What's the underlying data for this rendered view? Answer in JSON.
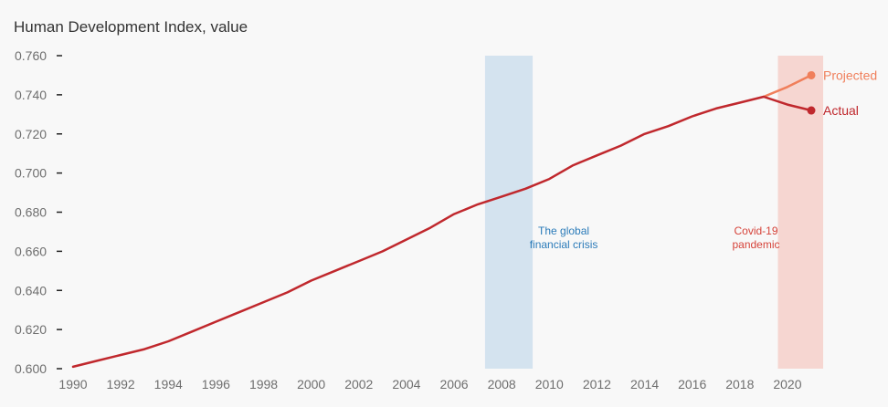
{
  "chart_data": {
    "type": "line",
    "title": "",
    "ylabel": "Human Development Index, value",
    "xlabel": "",
    "ylim": [
      0.6,
      0.76
    ],
    "xlim": [
      1990,
      2021
    ],
    "y_ticks": [
      "0.600",
      "0.620",
      "0.640",
      "0.660",
      "0.680",
      "0.700",
      "0.720",
      "0.740",
      "0.760"
    ],
    "x_ticks": [
      "1990",
      "1992",
      "1994",
      "1996",
      "1998",
      "2000",
      "2002",
      "2004",
      "2006",
      "2008",
      "2010",
      "2012",
      "2014",
      "2016",
      "2018",
      "2020"
    ],
    "grid": false,
    "colors": {
      "actual": "#c0282d",
      "projected": "#f07f5b",
      "crisis_band": "#d4e3ef",
      "crisis_text": "#2b7bb9",
      "pandemic_band": "#f6d6d1",
      "pandemic_text": "#d6433a"
    },
    "series": [
      {
        "name": "Actual",
        "x": [
          1990,
          1991,
          1992,
          1993,
          1994,
          1995,
          1996,
          1997,
          1998,
          1999,
          2000,
          2001,
          2002,
          2003,
          2004,
          2005,
          2006,
          2007,
          2008,
          2009,
          2010,
          2011,
          2012,
          2013,
          2014,
          2015,
          2016,
          2017,
          2018,
          2019,
          2020,
          2021
        ],
        "values": [
          0.601,
          0.604,
          0.607,
          0.61,
          0.614,
          0.619,
          0.624,
          0.629,
          0.634,
          0.639,
          0.645,
          0.65,
          0.655,
          0.66,
          0.666,
          0.672,
          0.679,
          0.684,
          0.688,
          0.692,
          0.697,
          0.704,
          0.709,
          0.714,
          0.72,
          0.724,
          0.729,
          0.733,
          0.736,
          0.739,
          0.735,
          0.732
        ]
      },
      {
        "name": "Projected",
        "x": [
          2019,
          2020,
          2021
        ],
        "values": [
          0.739,
          0.744,
          0.75
        ]
      }
    ],
    "bands": [
      {
        "x0": 2007.3,
        "x1": 2009.3,
        "label_lines": [
          "The global",
          "financial crisis"
        ]
      },
      {
        "x0": 2019.6,
        "x1": 2021.5,
        "label_lines": [
          "Covid-19",
          "pandemic"
        ]
      }
    ]
  }
}
